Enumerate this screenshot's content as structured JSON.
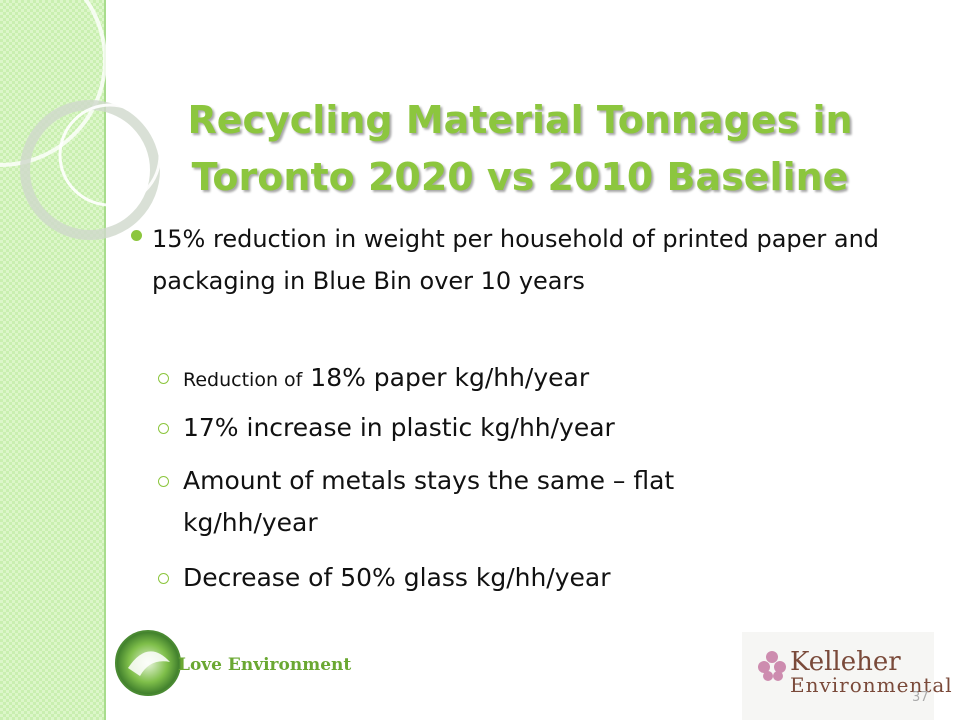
{
  "title": [
    "Recycling Material Tonnages in",
    "Toronto 2020 vs 2010 Baseline"
  ],
  "bullets": [
    {
      "text": "15% reduction in weight per household of printed paper and packaging in Blue Bin over 10 years",
      "sub": [
        [
          "Reduction of",
          "18% paper kg/hh/year"
        ],
        "17% increase in plastic kg/hh/year",
        "Amount of metals stays the same – flat kg/hh/year",
        "Decrease of 50% glass kg/hh/year"
      ]
    }
  ],
  "footer": {
    "logo_text": "Love Environment",
    "brand": [
      "Kelleher",
      "Environmental"
    ],
    "page_number": "37"
  }
}
